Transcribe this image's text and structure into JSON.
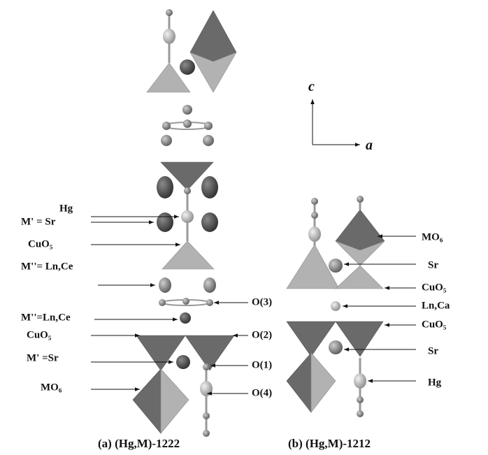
{
  "axes": {
    "c": "c",
    "a": "a"
  },
  "structure_a": {
    "caption": "(a) (Hg,M)-1222",
    "left_labels": [
      "Hg",
      "M' = Sr",
      "CuO₅",
      "M''= Ln,Ce",
      "M''=Ln,Ce",
      "CuO₅",
      "M' =Sr",
      "MO₆"
    ],
    "right_labels": [
      "O(3)",
      "O(2)",
      "O(1)",
      "O(4)"
    ]
  },
  "structure_b": {
    "caption": "(b) (Hg,M)-1212",
    "right_labels": [
      "MO₆",
      "Sr",
      "CuO₅",
      "Ln,Ca",
      "CuO₅",
      "Sr",
      "Hg"
    ]
  }
}
